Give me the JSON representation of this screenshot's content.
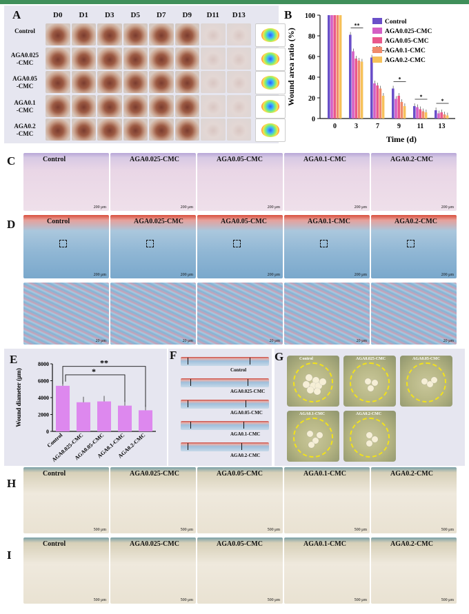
{
  "panels": {
    "A": "A",
    "B": "B",
    "C": "C",
    "D": "D",
    "E": "E",
    "F": "F",
    "G": "G",
    "H": "H",
    "I": "I"
  },
  "panelA": {
    "days": [
      "D0",
      "D1",
      "D3",
      "D5",
      "D7",
      "D9",
      "D11",
      "D13"
    ],
    "rows": [
      {
        "l1": "Control",
        "l2": ""
      },
      {
        "l1": "AGA0.025",
        "l2": "-CMC"
      },
      {
        "l1": "AGA0.05",
        "l2": "-CMC"
      },
      {
        "l1": "AGA0.1",
        "l2": "-CMC"
      },
      {
        "l1": "AGA0.2",
        "l2": "-CMC"
      }
    ]
  },
  "groups": [
    "Control",
    "AGA0.025-CMC",
    "AGA0.05-CMC",
    "AGA0.1-CMC",
    "AGA0.2-CMC"
  ],
  "colors": {
    "control": "#6a4fc9",
    "aga0025": "#d45fc4",
    "aga005": "#e9588c",
    "aga01": "#f08a6a",
    "aga02": "#f6c15a",
    "panelE_bar": "#dd88ee",
    "bg_panel": "#e6e6f0",
    "accent": "#3f8f5a"
  },
  "chart_data": [
    {
      "type": "bar",
      "panel": "B",
      "xlabel": "Time (d)",
      "ylabel": "Wound area ratio (%)",
      "ylim": [
        0,
        100
      ],
      "yticks": [
        "0",
        "20",
        "40",
        "60",
        "80",
        "100"
      ],
      "categories": [
        "0",
        "3",
        "7",
        "9",
        "11",
        "13"
      ],
      "legend_position": "top-right",
      "series": [
        {
          "name": "Control",
          "values": [
            100,
            81,
            59,
            29,
            12,
            8
          ]
        },
        {
          "name": "AGA0.025-CMC",
          "values": [
            100,
            65,
            34,
            19,
            11,
            5
          ]
        },
        {
          "name": "AGA0.05-CMC",
          "values": [
            100,
            58,
            32,
            22,
            9,
            6
          ]
        },
        {
          "name": "AGA0.1-CMC",
          "values": [
            100,
            56,
            29,
            16,
            7,
            4
          ]
        },
        {
          "name": "AGA0.2-CMC",
          "values": [
            100,
            55,
            22,
            12,
            6,
            3
          ]
        }
      ],
      "sig": [
        "**",
        "**",
        "*",
        "*",
        "*"
      ]
    },
    {
      "type": "bar",
      "panel": "E",
      "xlabel": "",
      "ylabel": "Wound diameter (μm)",
      "ylim": [
        0,
        8000
      ],
      "yticks": [
        "0",
        "2000",
        "4000",
        "6000",
        "8000"
      ],
      "categories": [
        "Control",
        "AGA0.025-CMC",
        "AGA0.05-CMC",
        "AGA0.1-CMC",
        "AGA0.2-CMC"
      ],
      "values": [
        5400,
        3450,
        3550,
        3050,
        2500
      ],
      "sig": [
        "**",
        "*"
      ]
    }
  ],
  "panelC": {
    "captions": [
      "Control",
      "AGA0.025-CMC",
      "AGA0.05-CMC",
      "AGA0.1-CMC",
      "AGA0.2-CMC"
    ],
    "scale": "200 μm"
  },
  "panelD": {
    "captions": [
      "Control",
      "AGA0.025-CMC",
      "AGA0.05-CMC",
      "AGA0.1-CMC",
      "AGA0.2-CMC"
    ],
    "scale": "200 μm",
    "zoom_scale": "20 μm"
  },
  "panelF": {
    "captions": [
      "Control",
      "AGA0.025-CMC",
      "AGA0.05-CMC",
      "AGA0.1-CMC",
      "AGA0.2-CMC"
    ]
  },
  "panelG": {
    "captions": [
      "Control",
      "AGA0.025-CMC",
      "AGA0.05-CMC",
      "AGA0.1-CMC",
      "AGA0.2-CMC"
    ]
  },
  "panelH": {
    "captions": [
      "Control",
      "AGA0.025-CMC",
      "AGA0.05-CMC",
      "AGA0.1-CMC",
      "AGA0.2-CMC"
    ],
    "scale": "500 μm"
  },
  "panelI": {
    "captions": [
      "Control",
      "AGA0.025-CMC",
      "AGA0.05-CMC",
      "AGA0.1-CMC",
      "AGA0.2-CMC"
    ],
    "scale": "500 μm"
  }
}
